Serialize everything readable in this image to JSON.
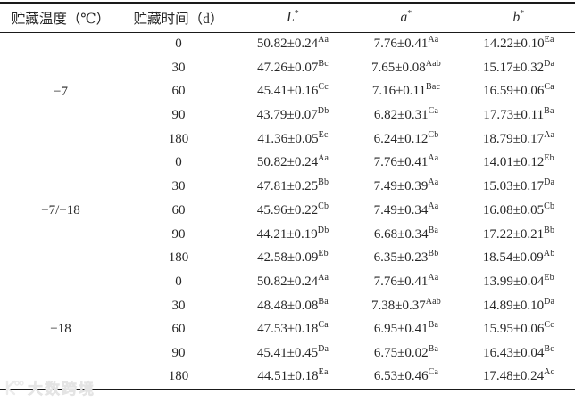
{
  "page": {
    "background": "#ffffff",
    "text_color": "#262626",
    "border_color": "#1a1a1a",
    "watermark_color": "#ebebeb"
  },
  "table": {
    "headers": [
      {
        "label": "贮藏温度（℃）"
      },
      {
        "label": "贮藏时间（d）"
      },
      {
        "label": "L",
        "sup": "*"
      },
      {
        "label": "a",
        "sup": "*"
      },
      {
        "label": "b",
        "sup": "*"
      }
    ],
    "groups": [
      {
        "temperature": "−7",
        "rows": [
          {
            "time": "0",
            "L": {
              "value": "50.82±0.24",
              "sup": "Aa"
            },
            "a": {
              "value": "7.76±0.41",
              "sup": "Aa"
            },
            "b": {
              "value": "14.22±0.10",
              "sup": "Ea"
            }
          },
          {
            "time": "30",
            "L": {
              "value": "47.26±0.07",
              "sup": "Bc"
            },
            "a": {
              "value": "7.65±0.08",
              "sup": "Aab"
            },
            "b": {
              "value": "15.17±0.32",
              "sup": "Da"
            }
          },
          {
            "time": "60",
            "L": {
              "value": "45.41±0.16",
              "sup": "Cc"
            },
            "a": {
              "value": "7.16±0.11",
              "sup": "Bac"
            },
            "b": {
              "value": "16.59±0.06",
              "sup": "Ca"
            }
          },
          {
            "time": "90",
            "L": {
              "value": "43.79±0.07",
              "sup": "Db"
            },
            "a": {
              "value": "6.82±0.31",
              "sup": "Ca"
            },
            "b": {
              "value": "17.73±0.11",
              "sup": "Ba"
            }
          },
          {
            "time": "180",
            "L": {
              "value": "41.36±0.05",
              "sup": "Ec"
            },
            "a": {
              "value": "6.24±0.12",
              "sup": "Cb"
            },
            "b": {
              "value": "18.79±0.17",
              "sup": "Aa"
            }
          }
        ]
      },
      {
        "temperature": "−7/−18",
        "rows": [
          {
            "time": "0",
            "L": {
              "value": "50.82±0.24",
              "sup": "Aa"
            },
            "a": {
              "value": "7.76±0.41",
              "sup": "Aa"
            },
            "b": {
              "value": "14.01±0.12",
              "sup": "Eb"
            }
          },
          {
            "time": "30",
            "L": {
              "value": "47.81±0.25",
              "sup": "Bb"
            },
            "a": {
              "value": "7.49±0.39",
              "sup": "Aa"
            },
            "b": {
              "value": "15.03±0.17",
              "sup": "Da"
            }
          },
          {
            "time": "60",
            "L": {
              "value": "45.96±0.22",
              "sup": "Cb"
            },
            "a": {
              "value": "7.49±0.34",
              "sup": "Aa"
            },
            "b": {
              "value": "16.08±0.05",
              "sup": "Cb"
            }
          },
          {
            "time": "90",
            "L": {
              "value": "44.21±0.19",
              "sup": "Db"
            },
            "a": {
              "value": "6.68±0.34",
              "sup": "Ba"
            },
            "b": {
              "value": "17.22±0.21",
              "sup": "Bb"
            }
          },
          {
            "time": "180",
            "L": {
              "value": "42.58±0.09",
              "sup": "Eb"
            },
            "a": {
              "value": "6.35±0.23",
              "sup": "Bb"
            },
            "b": {
              "value": "18.54±0.09",
              "sup": "Ab"
            }
          }
        ]
      },
      {
        "temperature": "−18",
        "rows": [
          {
            "time": "0",
            "L": {
              "value": "50.82±0.24",
              "sup": "Aa"
            },
            "a": {
              "value": "7.76±0.41",
              "sup": "Aa"
            },
            "b": {
              "value": "13.99±0.04",
              "sup": "Eb"
            }
          },
          {
            "time": "30",
            "L": {
              "value": "48.48±0.08",
              "sup": "Ba"
            },
            "a": {
              "value": "7.38±0.37",
              "sup": "Aab"
            },
            "b": {
              "value": "14.89±0.10",
              "sup": "Da"
            }
          },
          {
            "time": "60",
            "L": {
              "value": "47.53±0.18",
              "sup": "Ca"
            },
            "a": {
              "value": "6.95±0.41",
              "sup": "Ba"
            },
            "b": {
              "value": "15.95±0.06",
              "sup": "Cc"
            }
          },
          {
            "time": "90",
            "L": {
              "value": "45.41±0.45",
              "sup": "Da"
            },
            "a": {
              "value": "6.75±0.02",
              "sup": "Ba"
            },
            "b": {
              "value": "16.43±0.04",
              "sup": "Bc"
            }
          },
          {
            "time": "180",
            "L": {
              "value": "44.51±0.18",
              "sup": "Ea"
            },
            "a": {
              "value": "6.53±0.46",
              "sup": "Ca"
            },
            "b": {
              "value": "17.48±0.24",
              "sup": "Ac"
            }
          }
        ]
      }
    ]
  },
  "watermark": {
    "text": "大数跨境"
  }
}
